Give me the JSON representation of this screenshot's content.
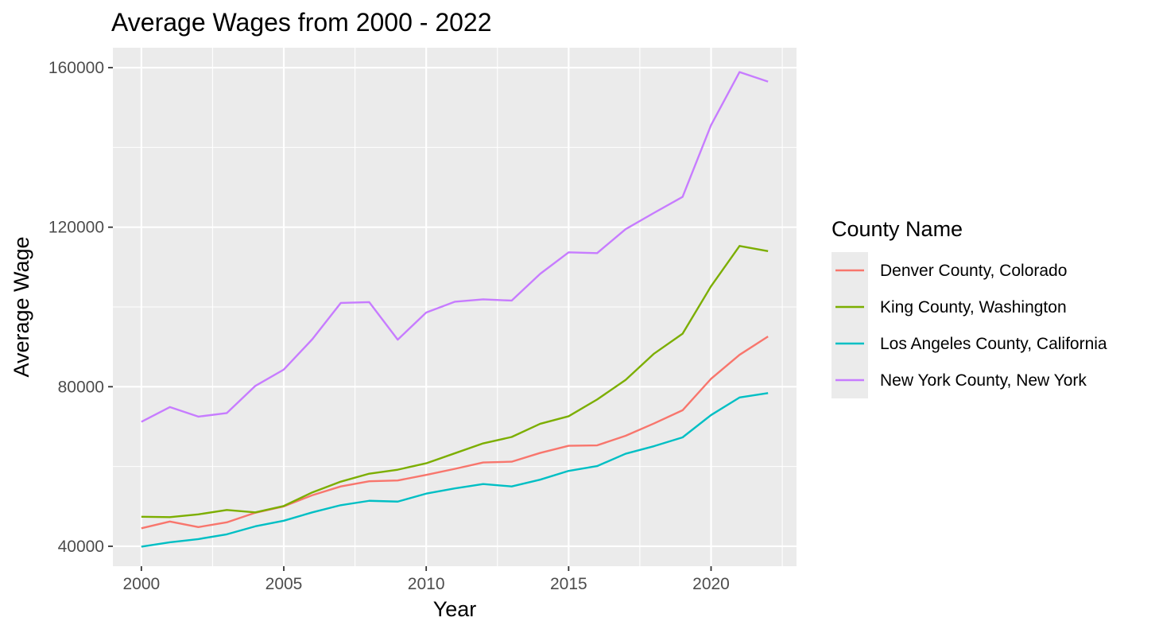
{
  "chart_data": {
    "type": "line",
    "title": "Average Wages from 2000 - 2022",
    "xlabel": "Year",
    "ylabel": "Average Wage",
    "xlim": [
      1999,
      2023
    ],
    "ylim": [
      35000,
      165000
    ],
    "x_ticks": [
      2000,
      2005,
      2010,
      2015,
      2020
    ],
    "x_tick_labels": [
      "2000",
      "2005",
      "2010",
      "2015",
      "2020"
    ],
    "y_ticks": [
      40000,
      80000,
      120000,
      160000
    ],
    "y_tick_labels": [
      "40000",
      "80000",
      "120000",
      "160000"
    ],
    "x_minor_ticks": [
      2002.5,
      2007.5,
      2012.5,
      2017.5,
      2022.5
    ],
    "y_minor_ticks": [
      60000,
      100000,
      140000
    ],
    "grid": true,
    "legend": {
      "title": "County Name",
      "placement": "right"
    },
    "colors": {
      "panel_background": "#ebebeb",
      "grid": "#ffffff",
      "tick": "#333333"
    },
    "x": [
      2000,
      2001,
      2002,
      2003,
      2004,
      2005,
      2006,
      2007,
      2008,
      2009,
      2010,
      2011,
      2012,
      2013,
      2014,
      2015,
      2016,
      2017,
      2018,
      2019,
      2020,
      2021,
      2022
    ],
    "series": [
      {
        "name": "Denver County, Colorado",
        "color": "#F8766D",
        "values": [
          44500,
          46200,
          44800,
          46000,
          48400,
          50000,
          52800,
          55000,
          56300,
          56500,
          57900,
          59400,
          61000,
          61200,
          63400,
          65200,
          65300,
          67700,
          70800,
          74100,
          82000,
          88000,
          92600
        ]
      },
      {
        "name": "King County, Washington",
        "color": "#7CAE00",
        "values": [
          47400,
          47300,
          48000,
          49100,
          48500,
          50100,
          53500,
          56200,
          58200,
          59200,
          60800,
          63300,
          65800,
          67400,
          70700,
          72600,
          76800,
          81700,
          88300,
          93300,
          105200,
          115300,
          114000
        ]
      },
      {
        "name": "Los Angeles County, California",
        "color": "#00BFC4",
        "values": [
          39900,
          41000,
          41800,
          43000,
          45000,
          46400,
          48500,
          50300,
          51400,
          51200,
          53200,
          54500,
          55600,
          55000,
          56700,
          58900,
          60100,
          63200,
          65100,
          67300,
          72900,
          77300,
          78400
        ]
      },
      {
        "name": "New York County, New York",
        "color": "#C77CFF",
        "values": [
          71200,
          74900,
          72500,
          73400,
          80200,
          84300,
          91900,
          101000,
          101200,
          91800,
          98600,
          101300,
          101900,
          101600,
          108300,
          113700,
          113500,
          119500,
          123600,
          127600,
          145600,
          158900,
          156500
        ]
      }
    ]
  }
}
